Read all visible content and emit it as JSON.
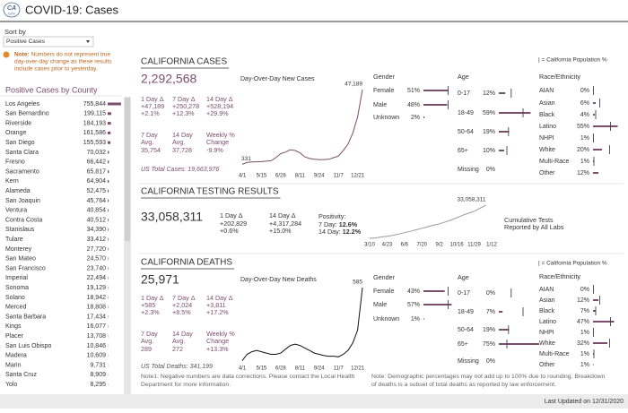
{
  "header": {
    "logo_top": "CA",
    "logo_bottom": "GOV",
    "title": "COVID-19: Cases"
  },
  "sort": {
    "label": "Sort by",
    "selected": "Positive Cases"
  },
  "note": {
    "lead": "Note:",
    "lines": [
      "Numbers do not represent true",
      "day-over-day change as these results",
      "include cases prior to yesterday."
    ]
  },
  "counties": {
    "title": "Positive Cases by County",
    "rows": [
      {
        "name": "Los Angeles",
        "value": 755844,
        "label": "755,844"
      },
      {
        "name": "San Bernardino",
        "value": 199115,
        "label": "199,115"
      },
      {
        "name": "Riverside",
        "value": 184193,
        "label": "184,193"
      },
      {
        "name": "Orange",
        "value": 161586,
        "label": "161,586"
      },
      {
        "name": "San Diego",
        "value": 155593,
        "label": "155,593"
      },
      {
        "name": "Santa Clara",
        "value": 70032,
        "label": "70,032"
      },
      {
        "name": "Fresno",
        "value": 66442,
        "label": "66,442"
      },
      {
        "name": "Sacramento",
        "value": 65817,
        "label": "65,817"
      },
      {
        "name": "Kern",
        "value": 64904,
        "label": "64,904"
      },
      {
        "name": "Alameda",
        "value": 52475,
        "label": "52,475"
      },
      {
        "name": "San Joaquin",
        "value": 45764,
        "label": "45,764"
      },
      {
        "name": "Ventura",
        "value": 40854,
        "label": "40,854"
      },
      {
        "name": "Contra Costa",
        "value": 40512,
        "label": "40,512"
      },
      {
        "name": "Stanislaus",
        "value": 34390,
        "label": "34,390"
      },
      {
        "name": "Tulare",
        "value": 33412,
        "label": "33,412"
      },
      {
        "name": "Monterey",
        "value": 27720,
        "label": "27,720"
      },
      {
        "name": "San Mateo",
        "value": 24570,
        "label": "24,570"
      },
      {
        "name": "San Francisco",
        "value": 23740,
        "label": "23,740"
      },
      {
        "name": "Imperial",
        "value": 22494,
        "label": "22,494"
      },
      {
        "name": "Sonoma",
        "value": 19129,
        "label": "19,129"
      },
      {
        "name": "Solano",
        "value": 18942,
        "label": "18,942"
      },
      {
        "name": "Merced",
        "value": 18808,
        "label": "18,808"
      },
      {
        "name": "Santa Barbara",
        "value": 17434,
        "label": "17,434"
      },
      {
        "name": "Kings",
        "value": 16077,
        "label": "16,077"
      },
      {
        "name": "Placer",
        "value": 13708,
        "label": "13,708"
      },
      {
        "name": "San Luis Obispo",
        "value": 10846,
        "label": "10,846"
      },
      {
        "name": "Madera",
        "value": 10609,
        "label": "10,609"
      },
      {
        "name": "Marin",
        "value": 9731,
        "label": "9,731"
      },
      {
        "name": "Santa Cruz",
        "value": 8909,
        "label": "8,909"
      },
      {
        "name": "Yolo",
        "value": 8295,
        "label": "8,295"
      }
    ]
  },
  "cases": {
    "heading": "CALIFORNIA CASES",
    "total": "2,292,568",
    "chart_title": "Day-Over-Day New Cases",
    "changes": [
      {
        "label": "1 Day Δ",
        "value": "+47,189",
        "pct": "+2.1%"
      },
      {
        "label": "7 Day Δ",
        "value": "+250,278",
        "pct": "+12.3%"
      },
      {
        "label": "14 Day Δ",
        "value": "+528,194",
        "pct": "+29.9%"
      }
    ],
    "averages": [
      {
        "label_lines": [
          "7 Day",
          "Avg."
        ],
        "value": "35,754"
      },
      {
        "label_lines": [
          "14 Day",
          "Avg."
        ],
        "value": "37,728"
      },
      {
        "label_lines": [
          "Weekly %",
          "Change"
        ],
        "value": "-9.9%"
      }
    ],
    "us_total": "US Total Cases: 19,663,976",
    "chart": {
      "type": "line",
      "color": "#7b4e6e",
      "x": [
        "4/1",
        null,
        null,
        null,
        "5/15",
        null,
        null,
        null,
        "6/28",
        null,
        null,
        null,
        "8/11",
        null,
        null,
        null,
        "9/24",
        null,
        null,
        null,
        "11/7",
        null,
        null,
        null,
        "12/21",
        null
      ],
      "values": [
        331,
        1500,
        1800,
        1900,
        2000,
        2300,
        2600,
        4500,
        7000,
        8000,
        9500,
        9000,
        7500,
        5000,
        4000,
        3500,
        3200,
        3300,
        3500,
        4500,
        5500,
        9000,
        13000,
        20000,
        30000,
        47189
      ],
      "value_labels": {
        "0": "331",
        "25": "47,189"
      }
    },
    "legend": "| = California Population %",
    "demographics": [
      {
        "title": "Gender",
        "rows": [
          {
            "name": "Female",
            "value": 51,
            "label": "51%",
            "population": 50
          },
          {
            "name": "Male",
            "value": 48,
            "label": "48%",
            "population": 50
          },
          {
            "name": "Unknown",
            "value": 2,
            "label": "2%",
            "population": null
          }
        ]
      },
      {
        "title": "Age",
        "rows": [
          {
            "name": "0-17",
            "value": 12,
            "label": "12%",
            "population": 23
          },
          {
            "name": "18-49",
            "value": 59,
            "label": "59%",
            "population": 45
          },
          {
            "name": "50-64",
            "value": 19,
            "label": "19%",
            "population": 18
          },
          {
            "name": "65+",
            "value": 10,
            "label": "10%",
            "population": 15
          },
          {
            "name": "Missing",
            "value": 0,
            "label": "0%",
            "population": null
          }
        ]
      },
      {
        "title": "Race/Ethnicity",
        "rows": [
          {
            "name": "AIAN",
            "value": 0,
            "label": "0%",
            "population": 1
          },
          {
            "name": "Asian",
            "value": 6,
            "label": "6%",
            "population": 15
          },
          {
            "name": "Black",
            "value": 4,
            "label": "4%",
            "population": 6
          },
          {
            "name": "Latino",
            "value": 55,
            "label": "55%",
            "population": 39
          },
          {
            "name": "NHPI",
            "value": 1,
            "label": "1%",
            "population": 1
          },
          {
            "name": "White",
            "value": 20,
            "label": "20%",
            "population": 37
          },
          {
            "name": "Multi-Race",
            "value": 1,
            "label": "1%",
            "population": 2
          },
          {
            "name": "Other",
            "value": 12,
            "label": "12%",
            "population": null
          }
        ]
      }
    ]
  },
  "testing": {
    "heading": "CALIFORNIA TESTING RESULTS",
    "total": "33,058,311",
    "changes": [
      {
        "label": "1 Day Δ",
        "value": "+202,829",
        "pct": "+0.6%"
      },
      {
        "label": "14 Day Δ",
        "value": "+4,317,284",
        "pct": "+15.0%"
      }
    ],
    "positivity": {
      "label": "Positivity:",
      "rows": [
        {
          "label": "7 Day:",
          "value": "12.6%"
        },
        {
          "label": "14 Day:",
          "value": "12.2%"
        }
      ]
    },
    "chart": {
      "type": "line",
      "color": "#9a9a9a",
      "x": [
        "3/10",
        null,
        null,
        "4/23",
        null,
        null,
        "6/6",
        null,
        null,
        "7/20",
        null,
        null,
        "9/2",
        null,
        null,
        "10/16",
        null,
        null,
        "11/29",
        null,
        null,
        "1/12"
      ],
      "values": [
        30000,
        400000,
        1300000,
        2000000,
        3000000,
        4200000,
        5600000,
        7000000,
        8500000,
        10000000,
        11500000,
        13000000,
        14500000,
        16300000,
        18200000,
        20500000,
        23000000,
        25000000,
        27000000,
        30000000,
        33058311,
        null
      ],
      "value_labels": {
        "20": "33,058,311"
      }
    },
    "chart_caption": [
      "Cumulative Tests",
      "Reported by All Labs"
    ]
  },
  "deaths": {
    "heading": "CALIFORNIA DEATHS",
    "total": "25,971",
    "chart_title": "Day-Over-Day New Deaths",
    "changes": [
      {
        "label": "1 Day Δ",
        "value": "+585",
        "pct": "+2.3%"
      },
      {
        "label": "7 Day Δ",
        "value": "+2,024",
        "pct": "+8.5%"
      },
      {
        "label": "14 Day Δ",
        "value": "+3,811",
        "pct": "+17.2%"
      }
    ],
    "averages": [
      {
        "label_lines": [
          "7 Day",
          "Avg."
        ],
        "value": "289"
      },
      {
        "label_lines": [
          "14 Day",
          "Avg."
        ],
        "value": "272"
      },
      {
        "label_lines": [
          "Weekly %",
          "Change"
        ],
        "value": "+13.3%"
      }
    ],
    "us_total": "US Total Deaths: 341,199",
    "note": [
      "Note1: Negative numbers are data corrections. Please contact the Local Health",
      "Department for more information."
    ],
    "chart": {
      "type": "line",
      "color": "#111111",
      "x": [
        "4/1",
        null,
        null,
        null,
        "5/15",
        null,
        null,
        null,
        "6/28",
        null,
        null,
        null,
        "8/11",
        null,
        null,
        null,
        "9/24",
        null,
        null,
        null,
        "11/7",
        null,
        null,
        null,
        "12/21",
        null
      ],
      "values": [
        10,
        60,
        80,
        90,
        80,
        70,
        60,
        60,
        70,
        100,
        130,
        140,
        130,
        110,
        90,
        70,
        60,
        50,
        45,
        45,
        40,
        60,
        90,
        150,
        250,
        585
      ],
      "value_labels": {
        "25": "585"
      }
    },
    "legend": "| = California Population %",
    "demographics": [
      {
        "title": "Gender",
        "rows": [
          {
            "name": "Female",
            "value": 43,
            "label": "43%",
            "population": 50
          },
          {
            "name": "Male",
            "value": 57,
            "label": "57%",
            "population": 50
          },
          {
            "name": "Unknown",
            "value": 1,
            "label": "1%",
            "population": null
          }
        ]
      },
      {
        "title": "Age",
        "rows": [
          {
            "name": "0-17",
            "value": 0,
            "label": "0%",
            "population": 23
          },
          {
            "name": "18-49",
            "value": 7,
            "label": "7%",
            "population": 45
          },
          {
            "name": "50-64",
            "value": 19,
            "label": "19%",
            "population": 18
          },
          {
            "name": "65+",
            "value": 75,
            "label": "75%",
            "population": 15
          },
          {
            "name": "Missing",
            "value": 0,
            "label": "0%",
            "population": null
          }
        ]
      },
      {
        "title": "Race/Ethnicity",
        "rows": [
          {
            "name": "AIAN",
            "value": 0,
            "label": "0%",
            "population": 1
          },
          {
            "name": "Asian",
            "value": 12,
            "label": "12%",
            "population": 15
          },
          {
            "name": "Black",
            "value": 7,
            "label": "7%",
            "population": 6
          },
          {
            "name": "Latino",
            "value": 47,
            "label": "47%",
            "population": 39
          },
          {
            "name": "NHPI",
            "value": 1,
            "label": "1%",
            "population": 1
          },
          {
            "name": "White",
            "value": 32,
            "label": "32%",
            "population": 37
          },
          {
            "name": "Multi-Race",
            "value": 1,
            "label": "1%",
            "population": 2
          },
          {
            "name": "Other",
            "value": 1,
            "label": "1%",
            "population": null
          }
        ]
      }
    ]
  },
  "demographic_note": [
    "Note: Demographic percentages may not add up to 100% due to rounding. Breakdown",
    "of deaths is a subset of total deaths as reported by law enforcement."
  ],
  "footer": "Last Updated on 12/31/2020"
}
